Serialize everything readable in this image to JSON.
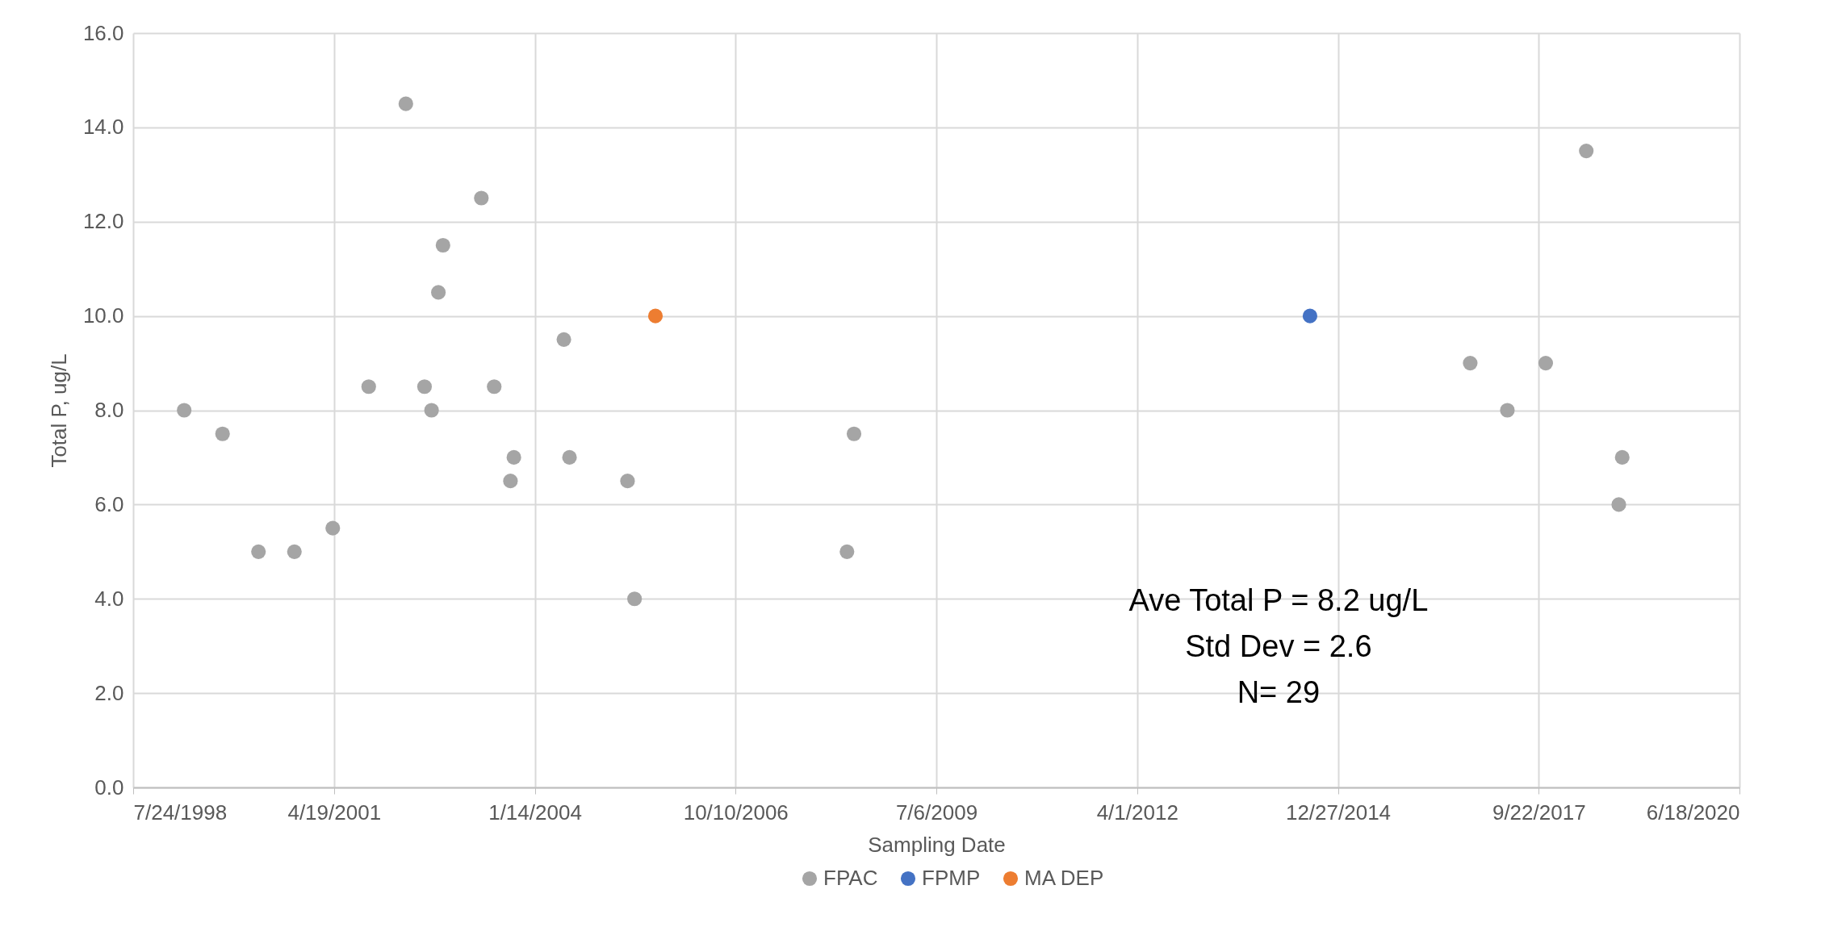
{
  "chart_data": {
    "type": "scatter",
    "xlabel": "Sampling Date",
    "ylabel": "Total P, ug/L",
    "xlim": [
      "1998-07-24",
      "2020-06-18"
    ],
    "xticks": [
      {
        "value": "1998-07-24",
        "label": "7/24/1998"
      },
      {
        "value": "2001-04-19",
        "label": "4/19/2001"
      },
      {
        "value": "2004-01-14",
        "label": "1/14/2004"
      },
      {
        "value": "2006-10-10",
        "label": "10/10/2006"
      },
      {
        "value": "2009-07-06",
        "label": "7/6/2009"
      },
      {
        "value": "2012-04-01",
        "label": "4/1/2012"
      },
      {
        "value": "2014-12-27",
        "label": "12/27/2014"
      },
      {
        "value": "2017-09-22",
        "label": "9/22/2017"
      },
      {
        "value": "2020-06-18",
        "label": "6/18/2020"
      }
    ],
    "ylim": [
      0,
      16
    ],
    "yticks": [
      {
        "value": 0,
        "label": "0.0"
      },
      {
        "value": 2,
        "label": "2.0"
      },
      {
        "value": 4,
        "label": "4.0"
      },
      {
        "value": 6,
        "label": "6.0"
      },
      {
        "value": 8,
        "label": "8.0"
      },
      {
        "value": 10,
        "label": "10.0"
      },
      {
        "value": 12,
        "label": "12.0"
      },
      {
        "value": 14,
        "label": "14.0"
      },
      {
        "value": 16,
        "label": "16.0"
      }
    ],
    "grid": true,
    "legend": "bottom",
    "marker": "circle",
    "annotations": [
      "Ave Total P  = 8.2 ug/L",
      "Std Dev = 2.6",
      "N= 29"
    ],
    "series": [
      {
        "name": "FPAC",
        "color": "#a5a5a5",
        "x": [
          "1999-04-04",
          "1999-10-12",
          "2000-04-08",
          "2000-10-04",
          "2001-04-13",
          "2001-10-09",
          "2002-04-12",
          "2002-07-14",
          "2002-08-18",
          "2002-09-21",
          "2002-10-14",
          "2003-04-23",
          "2003-06-26",
          "2003-09-15",
          "2003-10-02",
          "2004-06-07",
          "2004-07-05",
          "2005-04-20",
          "2005-05-25",
          "2008-04-17",
          "2008-05-22",
          "2016-10-16",
          "2017-04-19",
          "2017-10-27",
          "2018-05-17",
          "2018-10-26",
          "2018-11-12"
        ],
        "values": [
          8.0,
          7.5,
          5.0,
          5.0,
          5.5,
          8.5,
          14.5,
          8.5,
          8.0,
          10.5,
          11.5,
          12.5,
          8.5,
          6.5,
          7.0,
          9.5,
          7.0,
          6.5,
          4.0,
          5.0,
          7.5,
          9.0,
          8.0,
          9.0,
          13.5,
          6.0,
          7.0
        ]
      },
      {
        "name": "FPMP",
        "color": "#4472c4",
        "x": [
          "2014-08-10"
        ],
        "values": [
          10.0
        ]
      },
      {
        "name": "MA DEP",
        "color": "#ed7d31",
        "x": [
          "2005-09-06"
        ],
        "values": [
          10.0
        ]
      }
    ]
  }
}
